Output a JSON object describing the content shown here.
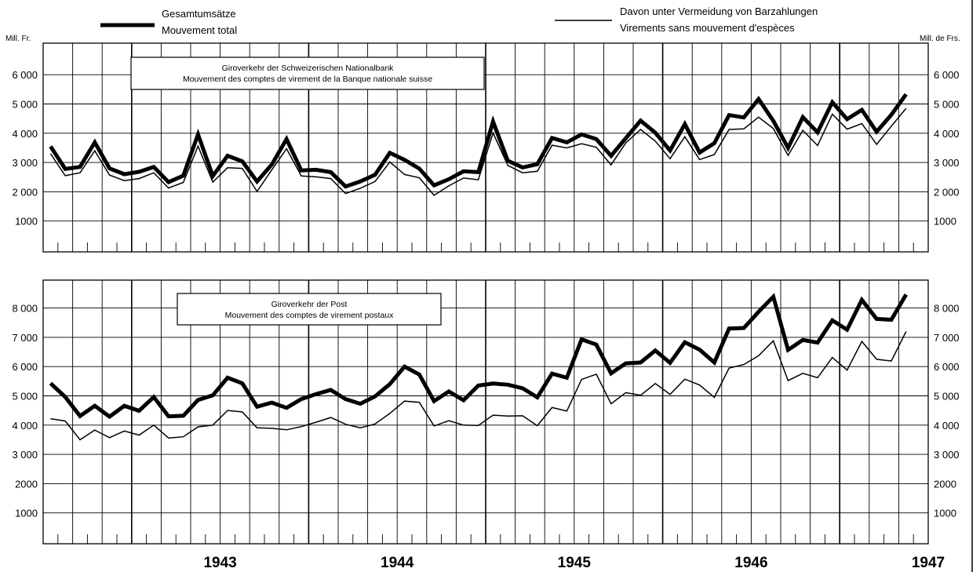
{
  "legend": {
    "thick": {
      "line1": "Gesamtumsätze",
      "line2": "Mouvement total"
    },
    "thin": {
      "line1": "Davon unter Vermeidung von Barzahlungen",
      "line2": "Virements sans mouvement d'espèces"
    }
  },
  "units": {
    "left": "Mill. Fr.",
    "right": "Mill. de Frs."
  },
  "chart_data": [
    {
      "type": "line",
      "title": "Giroverkehr der Schweizerischen Nationalbank",
      "subtitle": "Mouvement des comptes de virement de la Banque nationale suisse",
      "x_tick_labels": [
        "1943",
        "1944",
        "1945",
        "1946",
        "1947"
      ],
      "x_start": "1942-07",
      "x_months": 60,
      "y_ticks": [
        1000,
        2000,
        3000,
        4000,
        5000,
        6000
      ],
      "y_tick_labels": [
        "1000",
        "2 000",
        "3 000",
        "4 000",
        "5 000",
        "6 000"
      ],
      "ylim": [
        0,
        7000
      ],
      "grid": true,
      "series": [
        {
          "values": [
            3550,
            2780,
            2850,
            3690,
            2800,
            2600,
            2680,
            2850,
            2330,
            2550,
            3960,
            2540,
            3230,
            3040,
            2350,
            2930,
            3800,
            2730,
            2750,
            2670,
            2180,
            2350,
            2580,
            3330,
            3090,
            2790,
            2220,
            2430,
            2700,
            2670,
            4400,
            3060,
            2830,
            2940,
            3840,
            3690,
            3960,
            3800,
            3230,
            3830,
            4430,
            4020,
            3410,
            4310,
            3340,
            3660,
            4620,
            4540,
            5170,
            4420,
            3500,
            4550,
            4030,
            5060,
            4480,
            4800,
            4050,
            4630,
            5330
          ]
        },
        {
          "values": [
            3300,
            2550,
            2650,
            3400,
            2570,
            2380,
            2450,
            2650,
            2130,
            2320,
            3560,
            2330,
            2820,
            2800,
            2010,
            2750,
            3470,
            2540,
            2510,
            2450,
            1940,
            2120,
            2350,
            3020,
            2590,
            2480,
            1880,
            2200,
            2470,
            2410,
            4010,
            2900,
            2650,
            2700,
            3590,
            3500,
            3640,
            3520,
            2920,
            3670,
            4130,
            3730,
            3130,
            3880,
            3100,
            3270,
            4130,
            4150,
            4550,
            4160,
            3240,
            4100,
            3580,
            4650,
            4140,
            4330,
            3620,
            4240,
            4850
          ]
        }
      ]
    },
    {
      "type": "line",
      "title": "Giroverkehr der Post",
      "subtitle": "Mouvement des comptes de virement postaux",
      "x_tick_labels": [
        "1943",
        "1944",
        "1945",
        "1946",
        "1947"
      ],
      "x_start": "1942-07",
      "x_months": 60,
      "y_ticks": [
        1000,
        2000,
        3000,
        4000,
        5000,
        6000,
        7000,
        8000
      ],
      "y_tick_labels": [
        "1000",
        "2000",
        "3 000",
        "4 000",
        "5 000",
        "6 000",
        "7 000",
        "8 000"
      ],
      "ylim": [
        0,
        9000
      ],
      "grid": true,
      "series": [
        {
          "values": [
            5430,
            4960,
            4310,
            4660,
            4290,
            4660,
            4490,
            4960,
            4300,
            4320,
            4860,
            5020,
            5620,
            5430,
            4630,
            4770,
            4590,
            4890,
            5060,
            5200,
            4890,
            4730,
            4980,
            5400,
            6000,
            5730,
            4820,
            5150,
            4850,
            5350,
            5420,
            5380,
            5260,
            4950,
            5760,
            5620,
            6930,
            6750,
            5770,
            6110,
            6140,
            6550,
            6130,
            6830,
            6580,
            6140,
            7300,
            7320,
            7870,
            8390,
            6570,
            6910,
            6820,
            7580,
            7260,
            8280,
            7630,
            7600,
            8460
          ]
        },
        {
          "values": [
            4220,
            4140,
            3500,
            3830,
            3570,
            3800,
            3660,
            4000,
            3560,
            3600,
            3940,
            4000,
            4500,
            4450,
            3910,
            3890,
            3840,
            3950,
            4100,
            4260,
            4030,
            3910,
            4040,
            4400,
            4820,
            4780,
            3970,
            4150,
            4000,
            3990,
            4340,
            4310,
            4320,
            3980,
            4600,
            4480,
            5560,
            5740,
            4730,
            5110,
            5020,
            5420,
            5050,
            5570,
            5370,
            4950,
            5950,
            6070,
            6370,
            6880,
            5520,
            5770,
            5620,
            6310,
            5880,
            6860,
            6250,
            6190,
            7200
          ]
        }
      ]
    }
  ]
}
